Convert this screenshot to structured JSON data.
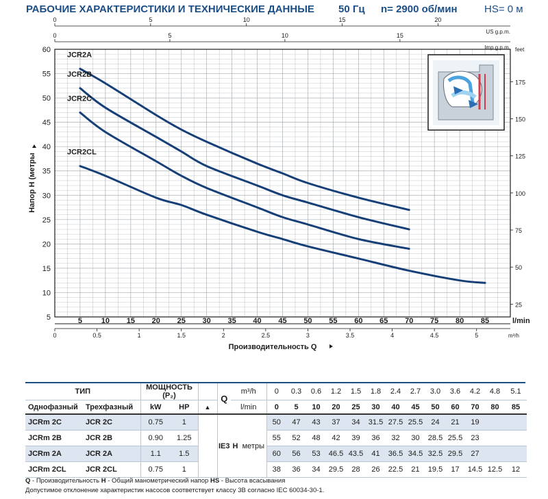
{
  "header": {
    "title": "РАБОЧИЕ ХАРАКТЕРИСТИКИ И ТЕХНИЧЕСКИЕ ДАННЫЕ",
    "frequency": "50 Гц",
    "speed": "n= 2900 об/мин",
    "suction": "HS= 0 м"
  },
  "colors": {
    "brand": "#1b4e86",
    "curve": "#163f77",
    "grid": "#9aa0a6",
    "shade": "#dde6f0"
  },
  "chart_data": {
    "type": "line",
    "x_unit": "l/min",
    "xlim": [
      0,
      90
    ],
    "ylim": [
      5,
      60
    ],
    "ylabel": "Напор H (метры",
    "xlabel": "Производительность Q",
    "grid": true,
    "x_ticks": [
      5,
      10,
      15,
      20,
      25,
      30,
      35,
      40,
      45,
      50,
      55,
      60,
      65,
      70,
      75,
      80,
      85
    ],
    "y_ticks": [
      5,
      10,
      15,
      20,
      25,
      30,
      35,
      40,
      45,
      50,
      55,
      60
    ],
    "top_axes": [
      {
        "unit": "US g.p.m.",
        "ticks": [
          "0",
          "5",
          "10",
          "15",
          "20"
        ],
        "values": [
          0,
          5,
          10,
          15,
          20
        ]
      },
      {
        "unit": "Imp g.p.m.",
        "ticks": [
          "0",
          "5",
          "10",
          "15"
        ],
        "values": [
          0,
          5,
          10,
          15
        ]
      }
    ],
    "bottom_m3h_axis": {
      "unit": "m³/h",
      "ticks": [
        "0",
        "0.5",
        "1",
        "1.5",
        "2",
        "2.5",
        "3",
        "3.5",
        "4",
        "4.5",
        "5"
      ],
      "values": [
        0,
        0.5,
        1,
        1.5,
        2,
        2.5,
        3,
        3.5,
        4,
        4.5,
        5
      ]
    },
    "right_axis": {
      "unit": "feet",
      "ticks": [
        "25",
        "50",
        "75",
        "100",
        "125",
        "150",
        "175"
      ],
      "values": [
        25,
        50,
        75,
        100,
        125,
        150,
        175
      ]
    },
    "series": [
      {
        "name": "JCR2A",
        "x": [
          5,
          10,
          20,
          25,
          30,
          40,
          45,
          50,
          60,
          70
        ],
        "y": [
          56,
          53,
          46.5,
          43.5,
          41,
          36.5,
          34.5,
          32.5,
          29.5,
          27
        ]
      },
      {
        "name": "JCR2B",
        "x": [
          5,
          10,
          20,
          25,
          30,
          40,
          45,
          50,
          60,
          70
        ],
        "y": [
          52,
          48,
          42,
          39,
          36,
          32,
          30,
          28.5,
          25.5,
          23
        ]
      },
      {
        "name": "JCR2C",
        "x": [
          5,
          10,
          20,
          25,
          30,
          40,
          45,
          50,
          60,
          70
        ],
        "y": [
          47,
          43,
          37,
          34,
          31.5,
          27.5,
          25.5,
          24,
          21,
          19
        ]
      },
      {
        "name": "JCR2CL",
        "x": [
          5,
          10,
          20,
          25,
          30,
          40,
          45,
          50,
          60,
          70,
          80,
          85
        ],
        "y": [
          36,
          34,
          29.5,
          28,
          26,
          22.5,
          21,
          19.5,
          17,
          14.5,
          12.5,
          12
        ]
      }
    ]
  },
  "table": {
    "type_label": "ТИП",
    "power_label": "МОЩНОСТЬ (P₂)",
    "single_phase": "Однофазный",
    "three_phase": "Трехфазный",
    "kw": "kW",
    "hp": "HP",
    "triangle": "▲",
    "q_label": "Q",
    "m3h": "m³/h",
    "lmin": "l/min",
    "ie": "IE3",
    "h_label": "H",
    "h_unit": "метры",
    "m3h_values": [
      "0",
      "0.3",
      "0.6",
      "1.2",
      "1.5",
      "1.8",
      "2.4",
      "2.7",
      "3.0",
      "3.6",
      "4.2",
      "4.8",
      "5.1"
    ],
    "lmin_values": [
      "0",
      "5",
      "10",
      "20",
      "25",
      "30",
      "40",
      "45",
      "50",
      "60",
      "70",
      "80",
      "85"
    ],
    "rows": [
      {
        "single": "JCRm 2C",
        "three": "JCR 2C",
        "kw": "0.75",
        "hp": "1",
        "h": [
          "50",
          "47",
          "43",
          "37",
          "34",
          "31.5",
          "27.5",
          "25.5",
          "24",
          "21",
          "19",
          "",
          ""
        ]
      },
      {
        "single": "JCRm 2B",
        "three": "JCR 2B",
        "kw": "0.90",
        "hp": "1.25",
        "h": [
          "55",
          "52",
          "48",
          "42",
          "39",
          "36",
          "32",
          "30",
          "28.5",
          "25.5",
          "23",
          "",
          ""
        ]
      },
      {
        "single": "JCRm 2A",
        "three": "JCR 2A",
        "kw": "1.1",
        "hp": "1.5",
        "h": [
          "60",
          "56",
          "53",
          "46.5",
          "43.5",
          "41",
          "36.5",
          "34.5",
          "32.5",
          "29.5",
          "27",
          "",
          ""
        ]
      },
      {
        "single": "JCRm 2CL",
        "three": "JCR 2CL",
        "kw": "0.75",
        "hp": "1",
        "h": [
          "38",
          "36",
          "34",
          "29.5",
          "28",
          "26",
          "22.5",
          "21",
          "19.5",
          "17",
          "14.5",
          "12.5",
          "12"
        ]
      }
    ]
  },
  "footnote": {
    "q_key": "Q",
    "q_text": " - Производительность   ",
    "h_key": "H",
    "h_text": " - Общий манометрический напор   ",
    "hs_key": "HS",
    "hs_text": " - Высота всасывания",
    "tolerance": "Допустимое отклонение характеристик насосов соответствует классу 3B согласно IEC 60034-30-1."
  }
}
